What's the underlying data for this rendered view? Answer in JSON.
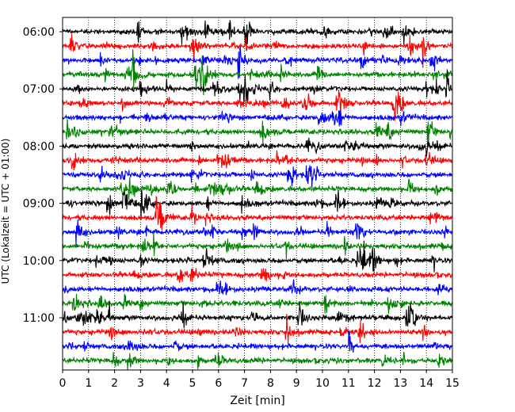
{
  "chart_data": {
    "type": "line",
    "title": "",
    "xlabel": "Zeit  [min]",
    "ylabel": "UTC (Lokalzeit = UTC + 01:00)",
    "xlim": [
      0,
      15
    ],
    "xticks": [
      "0",
      "1",
      "2",
      "3",
      "4",
      "5",
      "6",
      "7",
      "8",
      "9",
      "10",
      "11",
      "12",
      "13",
      "14",
      "15"
    ],
    "ytick_labels": [
      "06:00",
      "07:00",
      "08:00",
      "09:00",
      "10:00",
      "11:00"
    ],
    "trace_interval_min": 15,
    "first_trace": "06:00",
    "last_trace": "11:45",
    "trace_colors": [
      "#000000",
      "#ff0000",
      "#0000ff",
      "#008000"
    ],
    "grid_x": "dotted",
    "grid_y": false,
    "legend": "none"
  }
}
